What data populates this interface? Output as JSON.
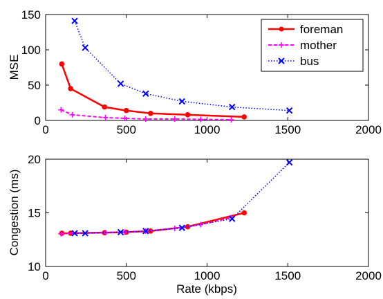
{
  "chart_data": [
    {
      "type": "line",
      "title": "",
      "xlabel": "",
      "ylabel": "MSE",
      "xlim": [
        0,
        2000
      ],
      "ylim": [
        0,
        150
      ],
      "xticks": [
        "0",
        "500",
        "1000",
        "1500",
        "2000"
      ],
      "yticks": [
        "0",
        "50",
        "100",
        "150"
      ],
      "grid": false,
      "legend": "top-right",
      "series": [
        {
          "name": "foreman",
          "color": "#ff0000",
          "style": "solid",
          "marker": "dot",
          "x": [
            100,
            155,
            365,
            500,
            650,
            880,
            1230
          ],
          "y": [
            80,
            45,
            19,
            14,
            10,
            8,
            5
          ]
        },
        {
          "name": "mother",
          "color": "#ff00ff",
          "style": "dashed",
          "marker": "plus",
          "x": [
            95,
            165,
            370,
            490,
            620,
            800,
            960,
            1150
          ],
          "y": [
            15,
            8,
            4,
            3,
            2,
            2,
            1.5,
            1
          ]
        },
        {
          "name": "bus",
          "color": "#0000ff",
          "style": "dotted",
          "marker": "x",
          "x": [
            180,
            245,
            465,
            620,
            845,
            1155,
            1510
          ],
          "y": [
            141,
            103,
            52,
            38,
            27,
            19,
            14
          ]
        }
      ]
    },
    {
      "type": "line",
      "title": "",
      "xlabel": "Rate (kbps)",
      "ylabel": "Congestion (ms)",
      "xlim": [
        0,
        2000
      ],
      "ylim": [
        10,
        20
      ],
      "xticks": [
        "0",
        "500",
        "1000",
        "1500",
        "2000"
      ],
      "yticks": [
        "10",
        "15",
        "20"
      ],
      "grid": false,
      "series": [
        {
          "name": "foreman",
          "color": "#ff0000",
          "style": "solid",
          "marker": "dot",
          "x": [
            100,
            155,
            365,
            500,
            650,
            880,
            1230
          ],
          "y": [
            13.1,
            13.1,
            13.15,
            13.2,
            13.3,
            13.7,
            15.0
          ]
        },
        {
          "name": "mother",
          "color": "#ff00ff",
          "style": "dashed",
          "marker": "plus",
          "x": [
            95,
            165,
            370,
            490,
            620,
            800,
            960,
            1150
          ],
          "y": [
            13.05,
            13.1,
            13.15,
            13.2,
            13.3,
            13.55,
            13.9,
            14.55
          ]
        },
        {
          "name": "bus",
          "color": "#0000ff",
          "style": "dotted",
          "marker": "x",
          "x": [
            180,
            245,
            465,
            620,
            845,
            1155,
            1510
          ],
          "y": [
            13.1,
            13.1,
            13.2,
            13.3,
            13.6,
            14.45,
            19.7
          ]
        }
      ]
    }
  ]
}
